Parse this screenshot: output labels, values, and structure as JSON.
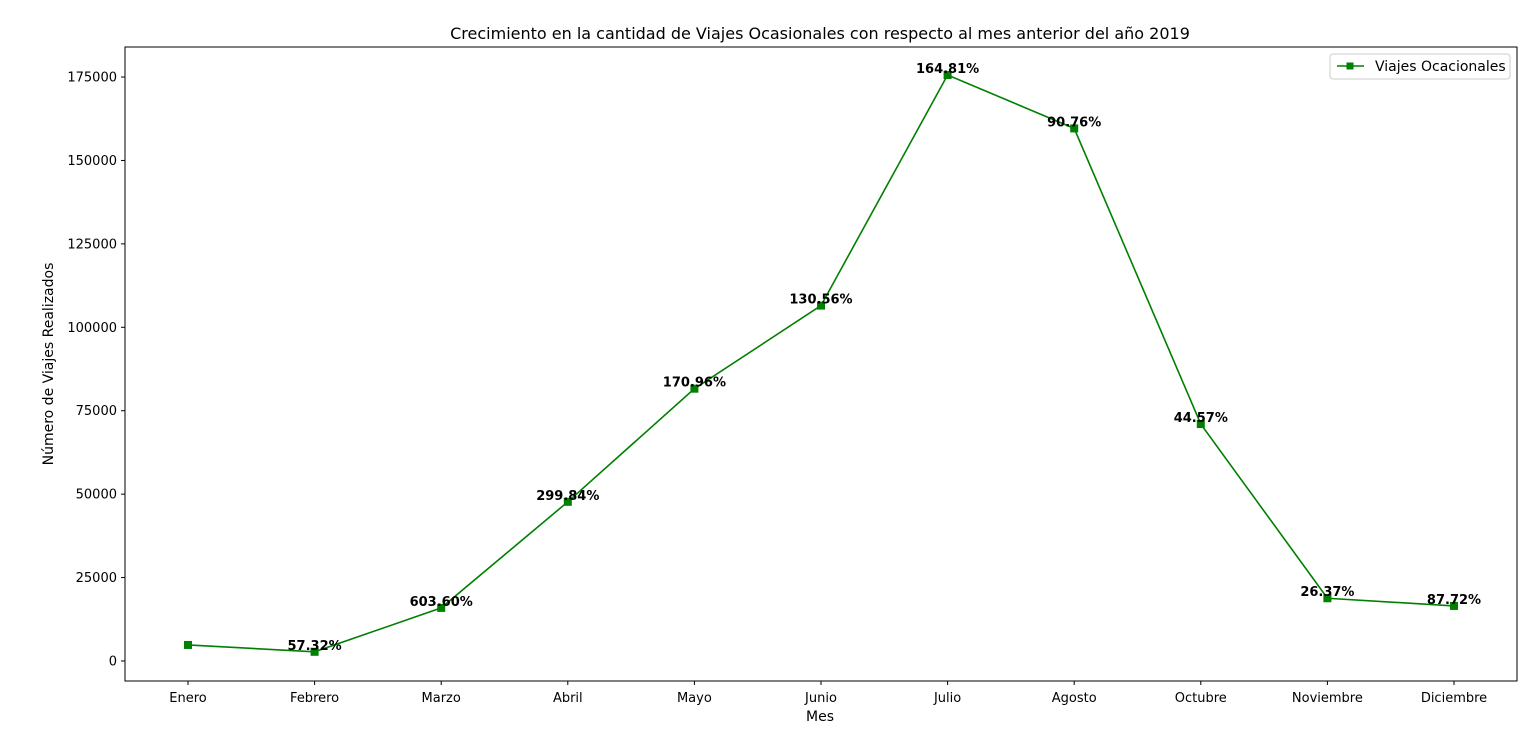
{
  "chart_data": {
    "type": "line",
    "title": "Crecimiento en la cantidad de Viajes Ocasionales con respecto al mes anterior del año 2019",
    "xlabel": "Mes",
    "ylabel": "Número de Viajes Realizados",
    "categories": [
      "Enero",
      "Febrero",
      "Marzo",
      "Abril",
      "Mayo",
      "Junio",
      "Julio",
      "Agosto",
      "Octubre",
      "Noviembre",
      "Diciembre"
    ],
    "series": [
      {
        "name": "Viajes Ocacionales",
        "color": "#008000",
        "marker": "square",
        "values": [
          4800,
          2750,
          15900,
          47700,
          81600,
          106500,
          175600,
          159600,
          71000,
          18800,
          16500
        ],
        "labels": [
          "",
          "57.32%",
          "603.60%",
          "299.84%",
          "170.96%",
          "130.56%",
          "164.81%",
          "90.76%",
          "44.57%",
          "26.37%",
          "87.72%"
        ]
      }
    ],
    "yticks": [
      0,
      25000,
      50000,
      75000,
      100000,
      125000,
      150000,
      175000
    ],
    "ylim": [
      -6000,
      184000
    ],
    "grid": false,
    "legend_position": "top-right"
  }
}
